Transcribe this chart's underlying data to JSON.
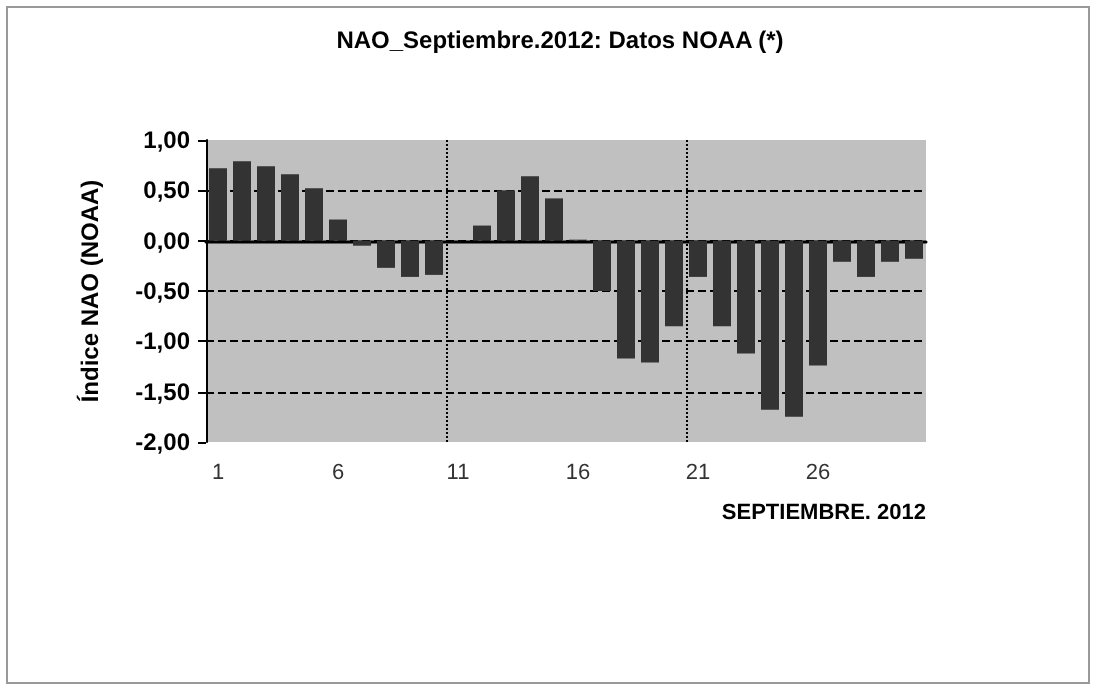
{
  "chart_data": {
    "type": "bar",
    "title": "NAO_Septiembre.2012: Datos NOAA (*)",
    "xlabel": "SEPTIEMBRE. 2012",
    "ylabel": "Índice NAO (NOAA)",
    "x": [
      1,
      2,
      3,
      4,
      5,
      6,
      7,
      8,
      9,
      10,
      11,
      12,
      13,
      14,
      15,
      16,
      17,
      18,
      19,
      20,
      21,
      22,
      23,
      24,
      25,
      26,
      27,
      28,
      29,
      30
    ],
    "values": [
      0.72,
      0.79,
      0.74,
      0.66,
      0.52,
      0.21,
      -0.05,
      -0.27,
      -0.36,
      -0.34,
      0,
      0.15,
      0.5,
      0.64,
      0.42,
      0.01,
      -0.5,
      -1.17,
      -1.21,
      -0.85,
      -0.36,
      -0.85,
      -1.12,
      -1.68,
      -1.75,
      -1.24,
      -0.21,
      -0.36,
      -0.21,
      -0.18
    ],
    "color": "#333333",
    "xlim": [
      0.5,
      30.5
    ],
    "xticks": [
      1,
      6,
      11,
      16,
      21,
      26
    ],
    "ylim": [
      -2,
      1
    ],
    "yticks": [
      {
        "value": -2,
        "label": "-2,00"
      },
      {
        "value": -1.5,
        "label": "-1,50"
      },
      {
        "value": -1,
        "label": "-1,00"
      },
      {
        "value": -0.5,
        "label": "-0,50"
      },
      {
        "value": 0,
        "label": "0,00"
      },
      {
        "value": 0.5,
        "label": "0,50"
      },
      {
        "value": 1,
        "label": "1,00"
      }
    ],
    "grid": "y",
    "ref_lines": [
      {
        "axis": "x",
        "value": 10.5,
        "line_style": "dotted"
      },
      {
        "axis": "x",
        "value": 20.5,
        "line_style": "dotted"
      }
    ]
  }
}
